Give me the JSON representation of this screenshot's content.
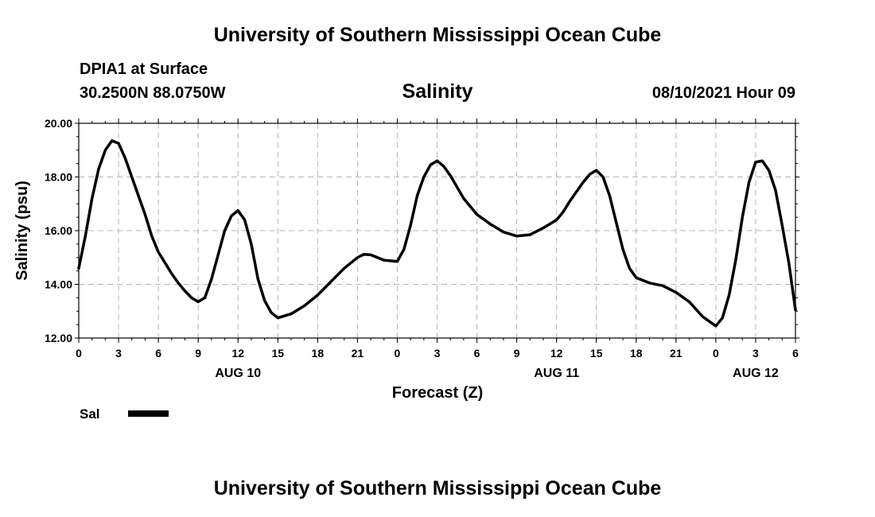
{
  "header": {
    "title": "University of Southern Mississippi Ocean Cube",
    "station": "DPIA1 at Surface",
    "location": "30.2500N  88.0750W",
    "variable": "Salinity",
    "datetime": "08/10/2021 Hour 09"
  },
  "footer": {
    "title": "University of Southern Mississippi Ocean Cube"
  },
  "chart_data": {
    "type": "line",
    "xlabel": "Forecast (Z)",
    "ylabel": "Salinity (psu)",
    "x_unit": "hours from 00Z Aug 10, 2021",
    "xlim": [
      0,
      54
    ],
    "ylim": [
      12,
      20
    ],
    "grid": true,
    "x_ticks": [
      {
        "x": 0,
        "label": "0"
      },
      {
        "x": 3,
        "label": "3"
      },
      {
        "x": 6,
        "label": "6"
      },
      {
        "x": 9,
        "label": "9"
      },
      {
        "x": 12,
        "label": "12"
      },
      {
        "x": 15,
        "label": "15"
      },
      {
        "x": 18,
        "label": "18"
      },
      {
        "x": 21,
        "label": "21"
      },
      {
        "x": 24,
        "label": "0"
      },
      {
        "x": 27,
        "label": "3"
      },
      {
        "x": 30,
        "label": "6"
      },
      {
        "x": 33,
        "label": "9"
      },
      {
        "x": 36,
        "label": "12"
      },
      {
        "x": 39,
        "label": "15"
      },
      {
        "x": 42,
        "label": "18"
      },
      {
        "x": 45,
        "label": "21"
      },
      {
        "x": 48,
        "label": "0"
      },
      {
        "x": 51,
        "label": "3"
      },
      {
        "x": 54,
        "label": "6"
      }
    ],
    "date_labels": [
      {
        "x": 12,
        "label": "AUG 10"
      },
      {
        "x": 36,
        "label": "AUG 11"
      },
      {
        "x": 51,
        "label": "AUG 12"
      }
    ],
    "y_ticks": [
      {
        "y": 12,
        "label": "12.00"
      },
      {
        "y": 14,
        "label": "14.00"
      },
      {
        "y": 16,
        "label": "16.00"
      },
      {
        "y": 18,
        "label": "18.00"
      },
      {
        "y": 20,
        "label": "20.00"
      }
    ],
    "legend": {
      "position": "bottom-left",
      "entries": [
        {
          "name": "Sal",
          "color": "#000000"
        }
      ]
    },
    "series": [
      {
        "name": "Sal",
        "color": "#000000",
        "points": [
          [
            0,
            14.6
          ],
          [
            0.5,
            15.8
          ],
          [
            1,
            17.2
          ],
          [
            1.5,
            18.3
          ],
          [
            2,
            19.0
          ],
          [
            2.5,
            19.35
          ],
          [
            3,
            19.25
          ],
          [
            3.5,
            18.7
          ],
          [
            4,
            18.0
          ],
          [
            5,
            16.6
          ],
          [
            5.5,
            15.8
          ],
          [
            6,
            15.2
          ],
          [
            6.5,
            14.8
          ],
          [
            7,
            14.4
          ],
          [
            7.5,
            14.05
          ],
          [
            8,
            13.75
          ],
          [
            8.5,
            13.5
          ],
          [
            9,
            13.35
          ],
          [
            9.5,
            13.5
          ],
          [
            10,
            14.2
          ],
          [
            10.5,
            15.1
          ],
          [
            11,
            16.0
          ],
          [
            11.5,
            16.55
          ],
          [
            12,
            16.75
          ],
          [
            12.5,
            16.4
          ],
          [
            13,
            15.5
          ],
          [
            13.5,
            14.2
          ],
          [
            14,
            13.4
          ],
          [
            14.5,
            12.95
          ],
          [
            15,
            12.75
          ],
          [
            16,
            12.9
          ],
          [
            17,
            13.2
          ],
          [
            18,
            13.6
          ],
          [
            19,
            14.1
          ],
          [
            20,
            14.6
          ],
          [
            21,
            15.0
          ],
          [
            21.5,
            15.12
          ],
          [
            22,
            15.1
          ],
          [
            23,
            14.9
          ],
          [
            24,
            14.85
          ],
          [
            24.5,
            15.3
          ],
          [
            25,
            16.2
          ],
          [
            25.5,
            17.3
          ],
          [
            26,
            18.0
          ],
          [
            26.5,
            18.45
          ],
          [
            27,
            18.6
          ],
          [
            27.5,
            18.4
          ],
          [
            28,
            18.05
          ],
          [
            29,
            17.2
          ],
          [
            30,
            16.6
          ],
          [
            31,
            16.25
          ],
          [
            32,
            15.95
          ],
          [
            33,
            15.8
          ],
          [
            34,
            15.85
          ],
          [
            35,
            16.1
          ],
          [
            36,
            16.4
          ],
          [
            36.5,
            16.7
          ],
          [
            37,
            17.1
          ],
          [
            38,
            17.8
          ],
          [
            38.5,
            18.1
          ],
          [
            39,
            18.25
          ],
          [
            39.5,
            18.0
          ],
          [
            40,
            17.3
          ],
          [
            40.5,
            16.3
          ],
          [
            41,
            15.3
          ],
          [
            41.5,
            14.6
          ],
          [
            42,
            14.25
          ],
          [
            43,
            14.05
          ],
          [
            44,
            13.95
          ],
          [
            45,
            13.7
          ],
          [
            46,
            13.35
          ],
          [
            47,
            12.8
          ],
          [
            48,
            12.45
          ],
          [
            48.5,
            12.75
          ],
          [
            49,
            13.6
          ],
          [
            49.5,
            14.9
          ],
          [
            50,
            16.5
          ],
          [
            50.5,
            17.8
          ],
          [
            51,
            18.55
          ],
          [
            51.5,
            18.6
          ],
          [
            52,
            18.25
          ],
          [
            52.5,
            17.5
          ],
          [
            53,
            16.2
          ],
          [
            53.5,
            14.8
          ],
          [
            54,
            13.05
          ]
        ]
      }
    ]
  }
}
